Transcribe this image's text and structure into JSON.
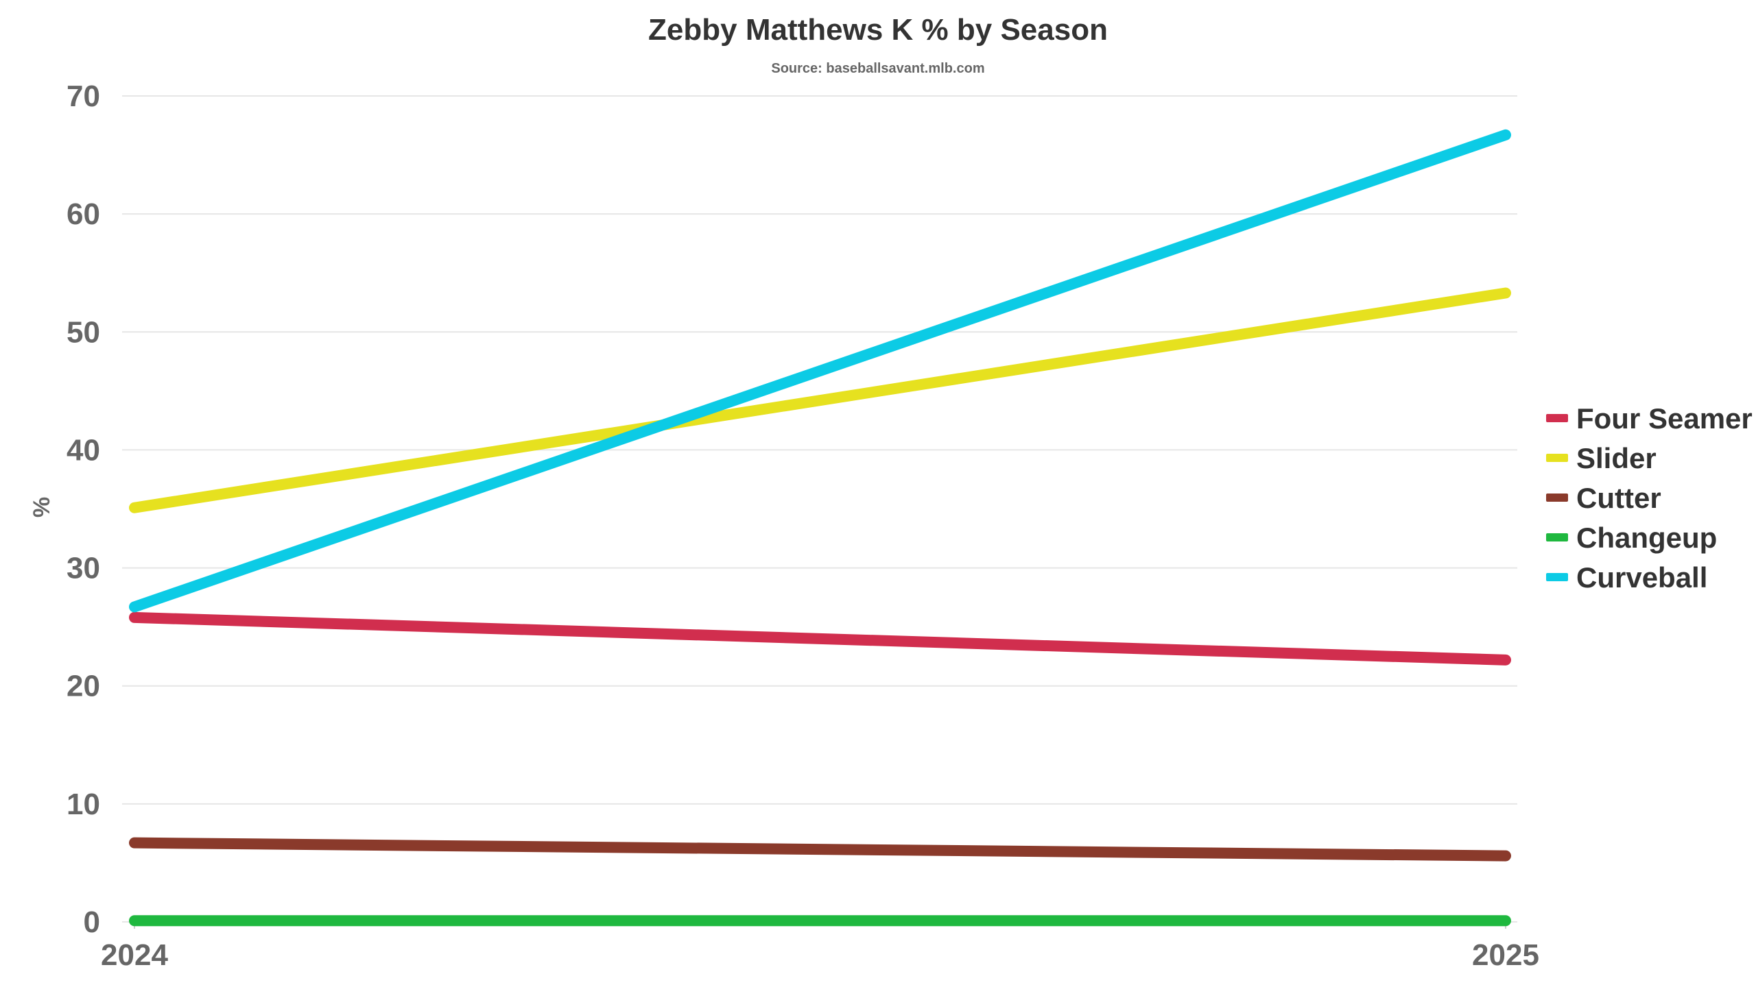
{
  "chart_data": {
    "type": "line",
    "title": "Zebby Matthews K % by Season",
    "subtitle": "Source: baseballsavant.mlb.com",
    "xlabel": "",
    "ylabel": "%",
    "x": [
      "2024",
      "2025"
    ],
    "ylim": [
      0,
      70
    ],
    "yticks": [
      0,
      10,
      20,
      30,
      40,
      50,
      60,
      70
    ],
    "grid": true,
    "legend_position": "right",
    "series": [
      {
        "name": "Four Seamer",
        "color": "#d12e4e",
        "values": [
          25.8,
          22.2
        ]
      },
      {
        "name": "Slider",
        "color": "#e6e11f",
        "values": [
          35.1,
          53.3
        ]
      },
      {
        "name": "Cutter",
        "color": "#8a3a2b",
        "values": [
          6.7,
          5.6
        ]
      },
      {
        "name": "Changeup",
        "color": "#1fb83f",
        "values": [
          0.1,
          0.1
        ]
      },
      {
        "name": "Curveball",
        "color": "#0ccbe5",
        "values": [
          26.7,
          66.7
        ]
      }
    ]
  }
}
